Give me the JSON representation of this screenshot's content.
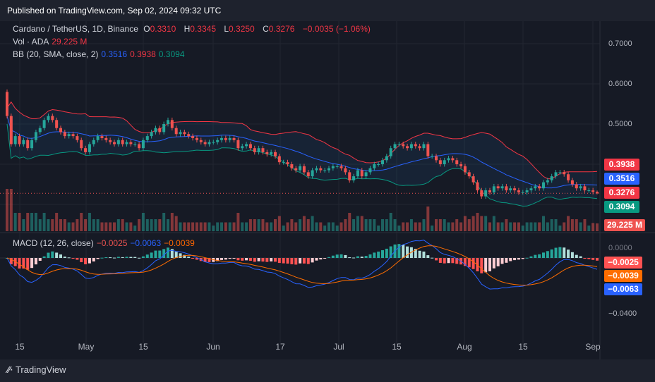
{
  "header": {
    "published": "Published on TradingView.com, Sep 02, 2024 09:32 UTC"
  },
  "legend": {
    "symbol": "Cardano / TetherUS, 1D, Binance",
    "o_label": "O",
    "o": "0.3310",
    "h_label": "H",
    "h": "0.3345",
    "l_label": "L",
    "l": "0.3250",
    "c_label": "C",
    "c": "0.3276",
    "change": "−0.0035 (−1.06%)",
    "vol_label": "Vol · ADA",
    "vol": "29.225 M",
    "bb_label": "BB (20, SMA, close, 2)",
    "bb_basis": "0.3516",
    "bb_upper": "0.3938",
    "bb_lower": "0.3094",
    "macd_label": "MACD (12, 26, close)",
    "macd_hist": "−0.0025",
    "macd_line": "−0.0063",
    "macd_signal": "−0.0039"
  },
  "price_tags": {
    "upper": "0.3938",
    "basis": "0.3516",
    "close": "0.3276",
    "lower": "0.3094",
    "volume": "29.225 M",
    "macd_hist": "−0.0025",
    "macd_signal": "−0.0039",
    "macd_line": "−0.0063"
  },
  "colors": {
    "up": "#26a69a",
    "down": "#ef5350",
    "bb_upper": "#f23645",
    "bb_basis": "#2962ff",
    "bb_lower": "#089981",
    "macd_line": "#2962ff",
    "signal": "#ff6d00"
  },
  "chart_data": {
    "type": "candlestick",
    "symbol": "ADAUSDT",
    "interval": "1D",
    "first_date": "2024-04-12",
    "last_date": "2024-09-02",
    "close": [
      0.52,
      0.45,
      0.47,
      0.45,
      0.46,
      0.44,
      0.46,
      0.48,
      0.49,
      0.51,
      0.52,
      0.51,
      0.49,
      0.48,
      0.47,
      0.475,
      0.47,
      0.46,
      0.44,
      0.43,
      0.45,
      0.46,
      0.47,
      0.465,
      0.46,
      0.455,
      0.45,
      0.46,
      0.45,
      0.455,
      0.45,
      0.45,
      0.44,
      0.46,
      0.47,
      0.48,
      0.49,
      0.48,
      0.5,
      0.51,
      0.49,
      0.475,
      0.48,
      0.475,
      0.47,
      0.465,
      0.46,
      0.455,
      0.45,
      0.455,
      0.455,
      0.46,
      0.465,
      0.46,
      0.465,
      0.46,
      0.44,
      0.445,
      0.45,
      0.44,
      0.43,
      0.44,
      0.43,
      0.425,
      0.43,
      0.42,
      0.405,
      0.405,
      0.4,
      0.39,
      0.385,
      0.395,
      0.38,
      0.37,
      0.385,
      0.39,
      0.385,
      0.385,
      0.39,
      0.395,
      0.395,
      0.39,
      0.38,
      0.36,
      0.37,
      0.385,
      0.37,
      0.38,
      0.39,
      0.4,
      0.4,
      0.41,
      0.42,
      0.44,
      0.45,
      0.45,
      0.445,
      0.44,
      0.45,
      0.445,
      0.44,
      0.45,
      0.42,
      0.42,
      0.41,
      0.4,
      0.41,
      0.415,
      0.41,
      0.4,
      0.395,
      0.38,
      0.37,
      0.355,
      0.335,
      0.32,
      0.335,
      0.33,
      0.345,
      0.34,
      0.345,
      0.335,
      0.34,
      0.335,
      0.33,
      0.33,
      0.335,
      0.34,
      0.345,
      0.34,
      0.355,
      0.36,
      0.37,
      0.38,
      0.38,
      0.375,
      0.36,
      0.35,
      0.34,
      0.345,
      0.335,
      0.335,
      0.331,
      0.3276
    ],
    "last_candle": {
      "open": 0.331,
      "high": 0.3345,
      "low": 0.325,
      "close": 0.3276
    },
    "price_axis": {
      "ticks": [
        "0.7000",
        "0.6000",
        "0.5000"
      ],
      "ylim": [
        0.27,
        0.72
      ]
    },
    "macd_axis": {
      "ticks": [
        "0.0000",
        "−0.0400"
      ]
    },
    "x_ticks": [
      "15",
      "May",
      "15",
      "Jun",
      "17",
      "Jul",
      "15",
      "Aug",
      "15",
      "Sep"
    ]
  },
  "footer": {
    "brand": "TradingView"
  }
}
